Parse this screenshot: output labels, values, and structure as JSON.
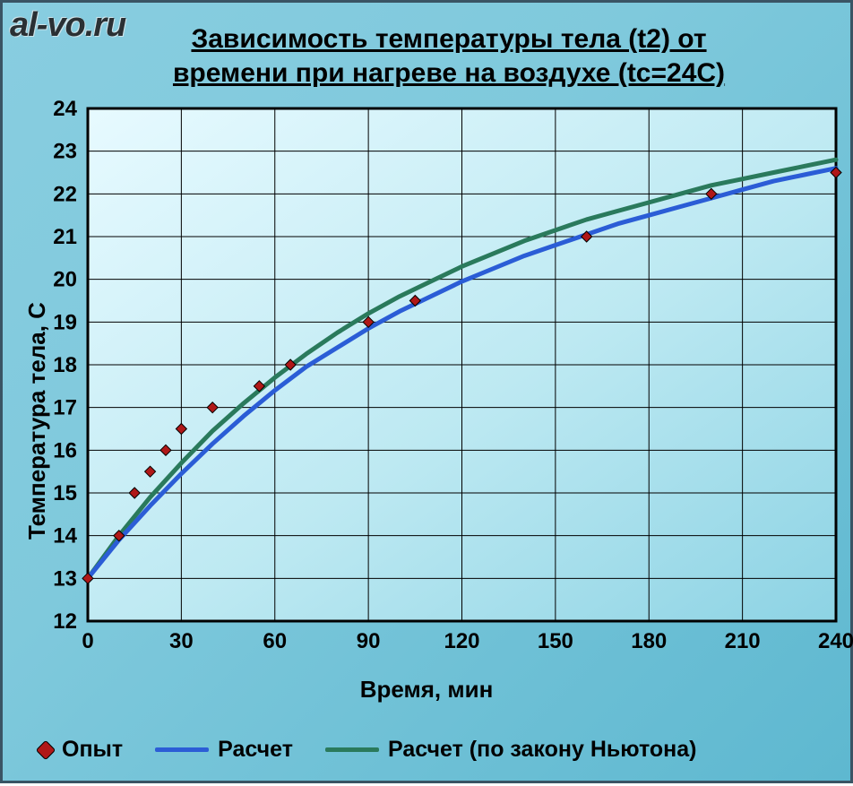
{
  "watermark": "al-vo.ru",
  "chart": {
    "type": "line+scatter",
    "title_line1": "Зависимость температуры тела (t2) от",
    "title_line2": "времени при нагреве на воздухе (tс=24С)",
    "title_fontsize": 30,
    "xlabel": "Время, мин",
    "ylabel": "Температура тела, С",
    "label_fontsize": 26,
    "xlim": [
      0,
      240
    ],
    "ylim": [
      12,
      24
    ],
    "xtick_step": 30,
    "ytick_step": 1,
    "tick_fontsize": 24,
    "background_gradient": [
      "#e7faff",
      "#bde9f2",
      "#8dd3e4"
    ],
    "grid_color": "#000000",
    "border_color": "#000000",
    "series": {
      "experiment": {
        "label": "Опыт",
        "type": "scatter",
        "marker": "diamond",
        "marker_size": 12,
        "fill_color": "#b01818",
        "stroke_color": "#000000",
        "points": [
          [
            0,
            13.0
          ],
          [
            10,
            14.0
          ],
          [
            15,
            15.0
          ],
          [
            20,
            15.5
          ],
          [
            25,
            16.0
          ],
          [
            30,
            16.5
          ],
          [
            40,
            17.0
          ],
          [
            55,
            17.5
          ],
          [
            65,
            18.0
          ],
          [
            90,
            19.0
          ],
          [
            105,
            19.5
          ],
          [
            160,
            21.0
          ],
          [
            200,
            22.0
          ],
          [
            240,
            22.5
          ]
        ]
      },
      "calc": {
        "label": "Расчет",
        "type": "line",
        "color": "#2b5dd6",
        "width": 5,
        "points": [
          [
            0,
            13.0
          ],
          [
            10,
            13.9
          ],
          [
            20,
            14.7
          ],
          [
            30,
            15.45
          ],
          [
            40,
            16.15
          ],
          [
            50,
            16.8
          ],
          [
            60,
            17.4
          ],
          [
            70,
            17.95
          ],
          [
            80,
            18.4
          ],
          [
            90,
            18.85
          ],
          [
            100,
            19.25
          ],
          [
            110,
            19.6
          ],
          [
            120,
            19.95
          ],
          [
            130,
            20.25
          ],
          [
            140,
            20.55
          ],
          [
            150,
            20.8
          ],
          [
            160,
            21.05
          ],
          [
            170,
            21.3
          ],
          [
            180,
            21.5
          ],
          [
            190,
            21.7
          ],
          [
            200,
            21.9
          ],
          [
            210,
            22.1
          ],
          [
            220,
            22.3
          ],
          [
            230,
            22.45
          ],
          [
            240,
            22.6
          ]
        ]
      },
      "newton": {
        "label": "Расчет (по закону Ньютона)",
        "type": "line",
        "color": "#2a7a5c",
        "width": 5,
        "points": [
          [
            0,
            13.0
          ],
          [
            10,
            14.0
          ],
          [
            20,
            14.9
          ],
          [
            30,
            15.7
          ],
          [
            40,
            16.45
          ],
          [
            50,
            17.1
          ],
          [
            60,
            17.7
          ],
          [
            70,
            18.25
          ],
          [
            80,
            18.75
          ],
          [
            90,
            19.2
          ],
          [
            100,
            19.6
          ],
          [
            110,
            19.95
          ],
          [
            120,
            20.3
          ],
          [
            130,
            20.6
          ],
          [
            140,
            20.9
          ],
          [
            150,
            21.15
          ],
          [
            160,
            21.4
          ],
          [
            170,
            21.6
          ],
          [
            180,
            21.8
          ],
          [
            190,
            22.0
          ],
          [
            200,
            22.2
          ],
          [
            210,
            22.35
          ],
          [
            220,
            22.5
          ],
          [
            230,
            22.65
          ],
          [
            240,
            22.8
          ]
        ]
      }
    },
    "legend": [
      {
        "key": "experiment",
        "label": "Опыт"
      },
      {
        "key": "calc",
        "label": "Расчет"
      },
      {
        "key": "newton",
        "label": "Расчет (по закону Ньютона)"
      }
    ]
  }
}
